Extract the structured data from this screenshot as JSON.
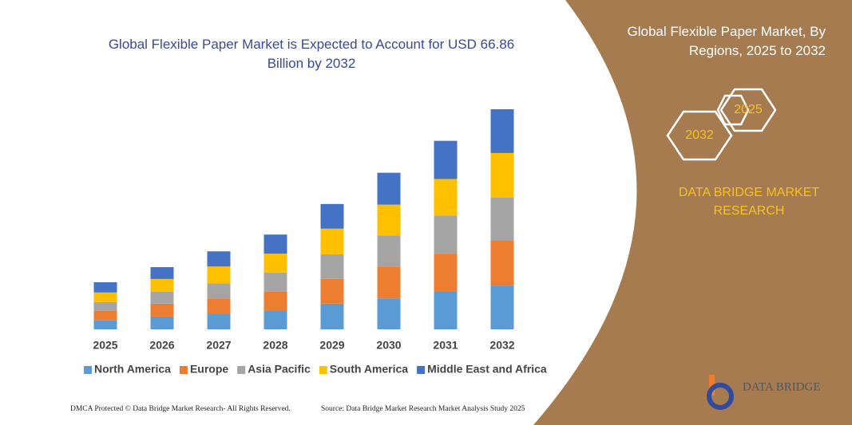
{
  "chart_data": {
    "type": "bar",
    "stacked": true,
    "title": "Global Flexible Paper Market is Expected to Account for USD 66.86 Billion by 2032",
    "categories": [
      "2025",
      "2026",
      "2027",
      "2028",
      "2029",
      "2030",
      "2031",
      "2032"
    ],
    "series": [
      {
        "name": "North America",
        "color": "#5b9bd5",
        "values": [
          2.7,
          3.9,
          4.6,
          5.8,
          7.8,
          9.4,
          11.4,
          13.3
        ]
      },
      {
        "name": "Europe",
        "color": "#ed7d31",
        "values": [
          2.9,
          3.9,
          4.8,
          5.6,
          7.5,
          9.7,
          11.6,
          13.6
        ]
      },
      {
        "name": "Asia Pacific",
        "color": "#a5a5a5",
        "values": [
          2.7,
          3.6,
          4.6,
          5.8,
          7.5,
          9.4,
          11.6,
          13.1
        ]
      },
      {
        "name": "South America",
        "color": "#ffc000",
        "values": [
          2.9,
          3.9,
          5.1,
          5.8,
          7.8,
          9.4,
          11.1,
          13.6
        ]
      },
      {
        "name": "Middle East and Africa",
        "color": "#4472c4",
        "values": [
          3.1,
          3.6,
          4.6,
          5.8,
          7.5,
          9.7,
          11.6,
          13.3
        ]
      }
    ]
  },
  "side_panel": {
    "title": "Global Flexible Paper Market, By Regions, 2025 to 2032",
    "hexagons": [
      "2025",
      "2032"
    ],
    "brand": "DATA BRIDGE MARKET RESEARCH"
  },
  "logo": {
    "text": "DATA BRIDGE"
  },
  "footer": {
    "left": "DMCA Protected © Data Bridge Market Research-  All Rights Reserved.",
    "right": "Source: Data Bridge Market Research  Market Analysis Study 2025"
  }
}
